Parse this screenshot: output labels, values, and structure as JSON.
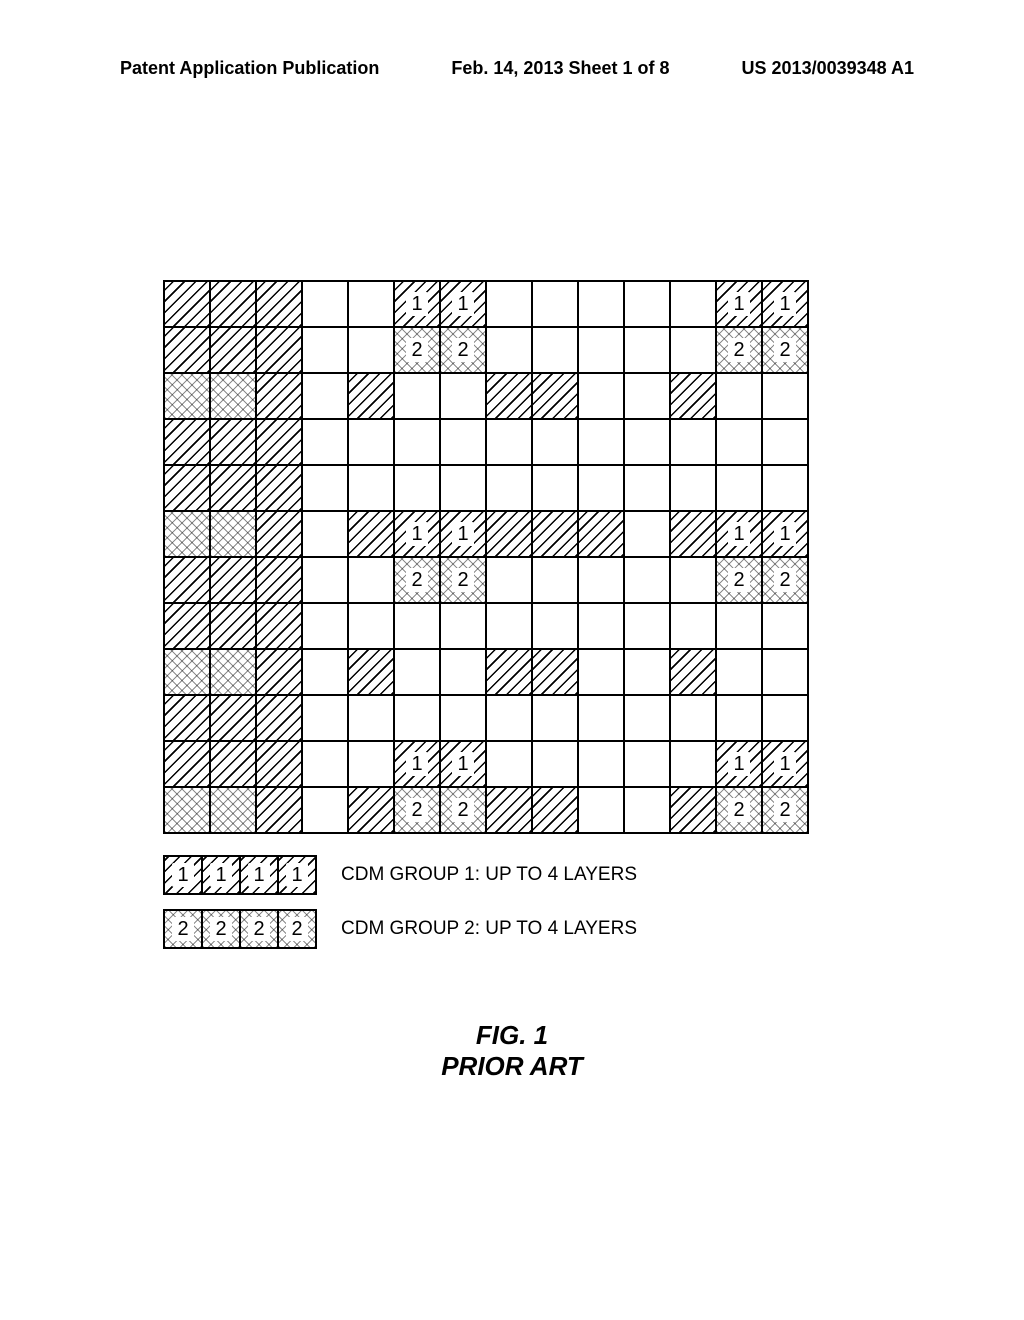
{
  "header": {
    "left": "Patent Application Publication",
    "center": "Feb. 14, 2013  Sheet 1 of 8",
    "right": "US 2013/0039348 A1"
  },
  "grid": {
    "rows": 12,
    "cols": 14,
    "cells": [
      [
        {
          "p": "d"
        },
        {
          "p": "d"
        },
        {
          "p": "d"
        },
        {
          "p": ""
        },
        {
          "p": ""
        },
        {
          "p": "d",
          "l": "1"
        },
        {
          "p": "d",
          "l": "1"
        },
        {
          "p": ""
        },
        {
          "p": ""
        },
        {
          "p": ""
        },
        {
          "p": ""
        },
        {
          "p": ""
        },
        {
          "p": "d",
          "l": "1"
        },
        {
          "p": "d",
          "l": "1"
        }
      ],
      [
        {
          "p": "d"
        },
        {
          "p": "d"
        },
        {
          "p": "d"
        },
        {
          "p": ""
        },
        {
          "p": ""
        },
        {
          "p": "c",
          "l": "2"
        },
        {
          "p": "c",
          "l": "2"
        },
        {
          "p": ""
        },
        {
          "p": ""
        },
        {
          "p": ""
        },
        {
          "p": ""
        },
        {
          "p": ""
        },
        {
          "p": "c",
          "l": "2"
        },
        {
          "p": "c",
          "l": "2"
        }
      ],
      [
        {
          "p": "c"
        },
        {
          "p": "c"
        },
        {
          "p": "d"
        },
        {
          "p": ""
        },
        {
          "p": "d"
        },
        {
          "p": ""
        },
        {
          "p": ""
        },
        {
          "p": "d"
        },
        {
          "p": "d"
        },
        {
          "p": ""
        },
        {
          "p": ""
        },
        {
          "p": "d"
        },
        {
          "p": ""
        },
        {
          "p": ""
        }
      ],
      [
        {
          "p": "d"
        },
        {
          "p": "d"
        },
        {
          "p": "d"
        },
        {
          "p": ""
        },
        {
          "p": ""
        },
        {
          "p": ""
        },
        {
          "p": ""
        },
        {
          "p": ""
        },
        {
          "p": ""
        },
        {
          "p": ""
        },
        {
          "p": ""
        },
        {
          "p": ""
        },
        {
          "p": ""
        },
        {
          "p": ""
        }
      ],
      [
        {
          "p": "d"
        },
        {
          "p": "d"
        },
        {
          "p": "d"
        },
        {
          "p": ""
        },
        {
          "p": ""
        },
        {
          "p": ""
        },
        {
          "p": ""
        },
        {
          "p": ""
        },
        {
          "p": ""
        },
        {
          "p": ""
        },
        {
          "p": ""
        },
        {
          "p": ""
        },
        {
          "p": ""
        },
        {
          "p": ""
        }
      ],
      [
        {
          "p": "c"
        },
        {
          "p": "c"
        },
        {
          "p": "d"
        },
        {
          "p": ""
        },
        {
          "p": "d"
        },
        {
          "p": "d",
          "l": "1"
        },
        {
          "p": "d",
          "l": "1"
        },
        {
          "p": "d"
        },
        {
          "p": "d"
        },
        {
          "p": "d"
        },
        {
          "p": ""
        },
        {
          "p": "d"
        },
        {
          "p": "d",
          "l": "1"
        },
        {
          "p": "d",
          "l": "1"
        }
      ],
      [
        {
          "p": "d"
        },
        {
          "p": "d"
        },
        {
          "p": "d"
        },
        {
          "p": ""
        },
        {
          "p": ""
        },
        {
          "p": "c",
          "l": "2"
        },
        {
          "p": "c",
          "l": "2"
        },
        {
          "p": ""
        },
        {
          "p": ""
        },
        {
          "p": ""
        },
        {
          "p": ""
        },
        {
          "p": ""
        },
        {
          "p": "c",
          "l": "2"
        },
        {
          "p": "c",
          "l": "2"
        }
      ],
      [
        {
          "p": "d"
        },
        {
          "p": "d"
        },
        {
          "p": "d"
        },
        {
          "p": ""
        },
        {
          "p": ""
        },
        {
          "p": ""
        },
        {
          "p": ""
        },
        {
          "p": ""
        },
        {
          "p": ""
        },
        {
          "p": ""
        },
        {
          "p": ""
        },
        {
          "p": ""
        },
        {
          "p": ""
        },
        {
          "p": ""
        }
      ],
      [
        {
          "p": "c"
        },
        {
          "p": "c"
        },
        {
          "p": "d"
        },
        {
          "p": ""
        },
        {
          "p": "d"
        },
        {
          "p": ""
        },
        {
          "p": ""
        },
        {
          "p": "d"
        },
        {
          "p": "d"
        },
        {
          "p": ""
        },
        {
          "p": ""
        },
        {
          "p": "d"
        },
        {
          "p": ""
        },
        {
          "p": ""
        }
      ],
      [
        {
          "p": "d"
        },
        {
          "p": "d"
        },
        {
          "p": "d"
        },
        {
          "p": ""
        },
        {
          "p": ""
        },
        {
          "p": ""
        },
        {
          "p": ""
        },
        {
          "p": ""
        },
        {
          "p": ""
        },
        {
          "p": ""
        },
        {
          "p": ""
        },
        {
          "p": ""
        },
        {
          "p": ""
        },
        {
          "p": ""
        }
      ],
      [
        {
          "p": "d"
        },
        {
          "p": "d"
        },
        {
          "p": "d"
        },
        {
          "p": ""
        },
        {
          "p": ""
        },
        {
          "p": "d",
          "l": "1"
        },
        {
          "p": "d",
          "l": "1"
        },
        {
          "p": ""
        },
        {
          "p": ""
        },
        {
          "p": ""
        },
        {
          "p": ""
        },
        {
          "p": ""
        },
        {
          "p": "d",
          "l": "1"
        },
        {
          "p": "d",
          "l": "1"
        }
      ],
      [
        {
          "p": "c"
        },
        {
          "p": "c"
        },
        {
          "p": "d"
        },
        {
          "p": ""
        },
        {
          "p": "d"
        },
        {
          "p": "c",
          "l": "2"
        },
        {
          "p": "c",
          "l": "2"
        },
        {
          "p": "d"
        },
        {
          "p": "d"
        },
        {
          "p": ""
        },
        {
          "p": ""
        },
        {
          "p": "d"
        },
        {
          "p": "c",
          "l": "2"
        },
        {
          "p": "c",
          "l": "2"
        }
      ]
    ]
  },
  "legend": {
    "row1": {
      "labels": [
        "1",
        "1",
        "1",
        "1"
      ],
      "pattern": "d",
      "text": "CDM GROUP 1:  UP TO 4 LAYERS"
    },
    "row2": {
      "labels": [
        "2",
        "2",
        "2",
        "2"
      ],
      "pattern": "c",
      "text": "CDM GROUP 2:  UP TO 4 LAYERS"
    }
  },
  "caption": {
    "line1": "FIG. 1",
    "line2": "PRIOR ART"
  }
}
